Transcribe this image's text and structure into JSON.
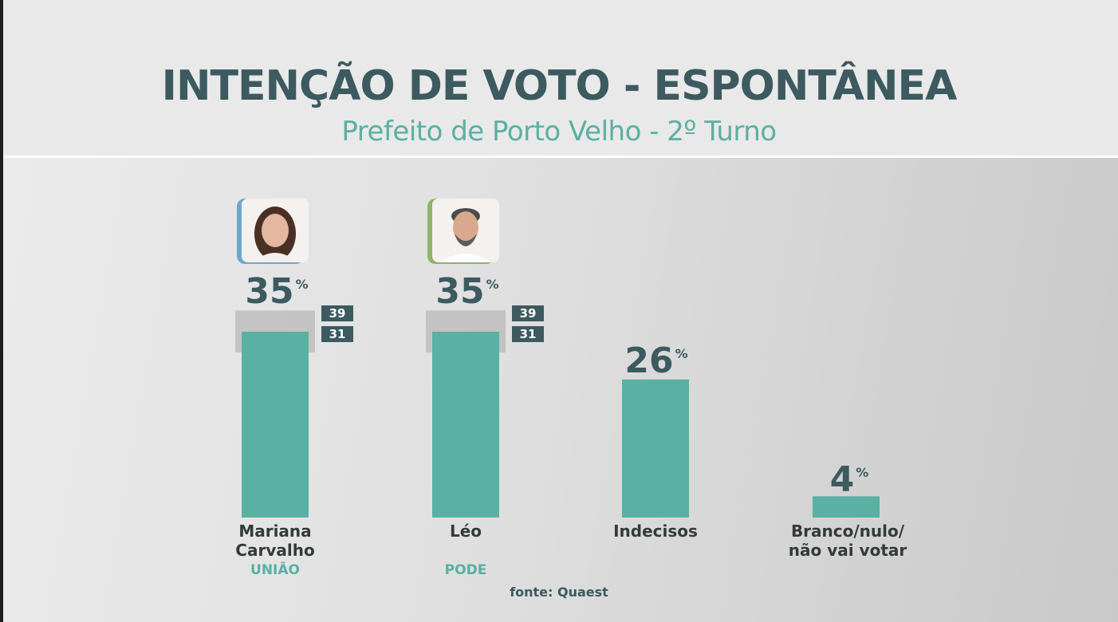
{
  "header": {
    "title": "INTENÇÃO DE VOTO - ESPONTÂNEA",
    "subtitle": "Prefeito de Porto Velho - 2º Turno"
  },
  "chart_data": {
    "type": "bar",
    "categories": [
      "Mariana Carvalho",
      "Léo",
      "Indecisos",
      "Branco/nulo/ não vai votar"
    ],
    "values": [
      35,
      35,
      26,
      4
    ],
    "unit": "%",
    "ranges": [
      {
        "high": "39",
        "low": "31"
      },
      {
        "high": "39",
        "low": "31"
      },
      null,
      null
    ],
    "parties": [
      "UNIÃO",
      "PODE",
      "",
      ""
    ],
    "labels_lines": [
      [
        "Mariana",
        "Carvalho"
      ],
      [
        "Léo"
      ],
      [
        "Indecisos"
      ],
      [
        "Branco/nulo/",
        "não vai votar"
      ]
    ],
    "ylim": [
      0,
      35
    ],
    "bar_color": "#5ab0a3",
    "range_shade_color": "#b8b8b8"
  },
  "colors": {
    "title": "#3c5a5f",
    "subtitle": "#5ab0a3",
    "accent_mariana": "#6ea8c9",
    "accent_leo": "#8fb36b"
  },
  "footer": {
    "source": "fonte: Quaest"
  }
}
